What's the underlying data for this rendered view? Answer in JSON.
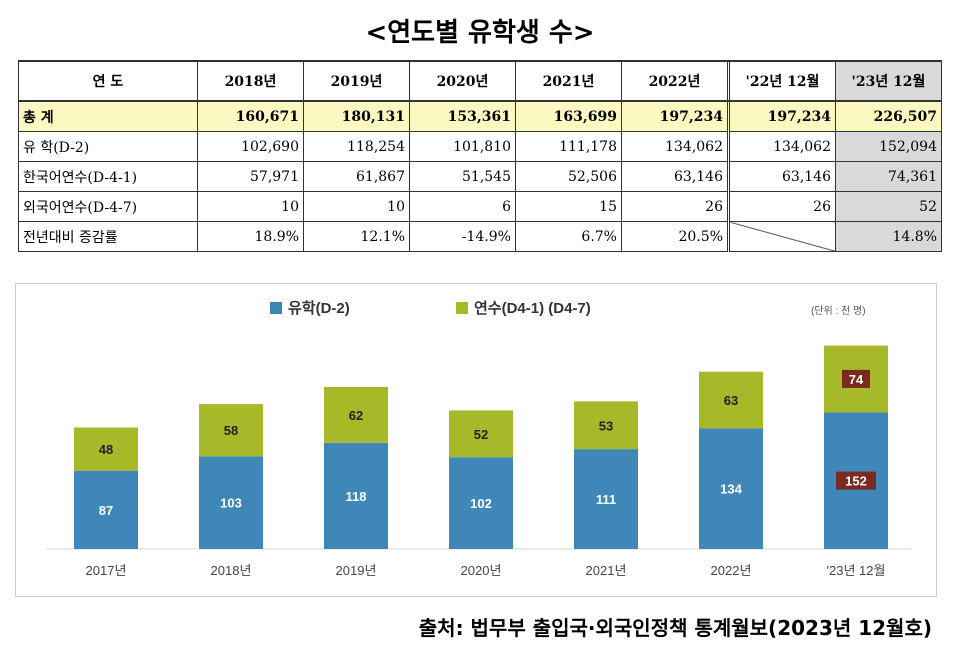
{
  "title": "<연도별 유학생 수>",
  "table": {
    "headers": [
      "연    도",
      "2018년",
      "2019년",
      "2020년",
      "2021년",
      "2022년",
      "'22년 12월",
      "'23년 12월"
    ],
    "rows": [
      {
        "label": "총    계",
        "values": [
          "160,671",
          "180,131",
          "153,361",
          "163,699",
          "197,234",
          "197,234",
          "226,507"
        ]
      },
      {
        "label": "유    학(D-2)",
        "values": [
          "102,690",
          "118,254",
          "101,810",
          "111,178",
          "134,062",
          "134,062",
          "152,094"
        ]
      },
      {
        "label": "한국어연수(D-4-1)",
        "values": [
          "57,971",
          "61,867",
          "51,545",
          "52,506",
          "63,146",
          "63,146",
          "74,361"
        ]
      },
      {
        "label": "외국어연수(D-4-7)",
        "values": [
          "10",
          "10",
          "6",
          "15",
          "26",
          "26",
          "52"
        ]
      },
      {
        "label": "전년대비 증감률",
        "values": [
          "18.9%",
          "12.1%",
          "-14.9%",
          "6.7%",
          "20.5%",
          "",
          "14.8%"
        ]
      }
    ]
  },
  "chart_data": {
    "type": "bar",
    "stacked": true,
    "categories": [
      "2017년",
      "2018년",
      "2019년",
      "2020년",
      "2021년",
      "2022년",
      "'23년 12월"
    ],
    "series": [
      {
        "name": "유학(D-2)",
        "color": "#3f87b8",
        "values": [
          87,
          103,
          118,
          102,
          111,
          134,
          152
        ]
      },
      {
        "name": "연수(D4-1) (D4-7)",
        "color": "#a7b829",
        "values": [
          48,
          58,
          62,
          52,
          53,
          63,
          74
        ]
      }
    ],
    "unit_note": "(단위 : 천 명)",
    "highlight_label_color": "#7b2a1f"
  },
  "source": "출처: 법무부 출입국·외국인정책 통계월보(2023년 12월호)"
}
